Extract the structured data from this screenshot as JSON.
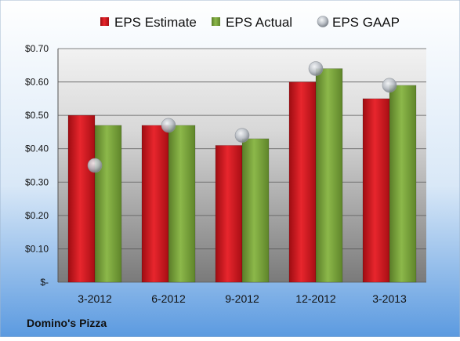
{
  "chart_data": {
    "type": "bar",
    "categories": [
      "3-2012",
      "6-2012",
      "9-2012",
      "12-2012",
      "3-2013"
    ],
    "series": [
      {
        "name": "EPS Estimate",
        "kind": "bar",
        "color": "#d0191f",
        "values": [
          0.5,
          0.47,
          0.41,
          0.6,
          0.55
        ]
      },
      {
        "name": "EPS Actual",
        "kind": "bar",
        "color": "#77a038",
        "values": [
          0.47,
          0.47,
          0.43,
          0.64,
          0.59
        ]
      },
      {
        "name": "EPS GAAP",
        "kind": "marker",
        "color": "#b4bac2",
        "values": [
          0.35,
          0.47,
          0.44,
          0.64,
          0.59
        ]
      }
    ],
    "y_ticks": [
      {
        "value": 0,
        "label": "$-"
      },
      {
        "value": 0.1,
        "label": "$0.10"
      },
      {
        "value": 0.2,
        "label": "$0.20"
      },
      {
        "value": 0.3,
        "label": "$0.30"
      },
      {
        "value": 0.4,
        "label": "$0.40"
      },
      {
        "value": 0.5,
        "label": "$0.50"
      },
      {
        "value": 0.6,
        "label": "$0.60"
      },
      {
        "value": 0.7,
        "label": "$0.70"
      }
    ],
    "ylim": [
      0,
      0.7
    ],
    "grid": true,
    "legend_position": "top",
    "company": "Domino's Pizza"
  }
}
